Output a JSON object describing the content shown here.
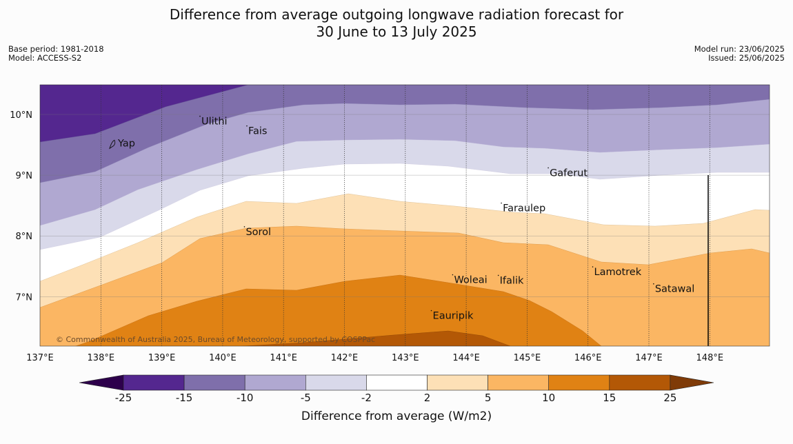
{
  "title": {
    "line1": "Difference from average outgoing longwave radiation forecast for",
    "line2": "30 June to 13 July 2025"
  },
  "info_left": {
    "base_period": "Base period: 1981-2018",
    "model": "Model: ACCESS-S2"
  },
  "info_right": {
    "model_run": "Model run: 23/06/2025",
    "issued": "Issued: 25/06/2025"
  },
  "map": {
    "lon_range": [
      137,
      149
    ],
    "lat_range": [
      6.2,
      10.5
    ],
    "lon_ticks": [
      "137°E",
      "138°E",
      "139°E",
      "140°E",
      "141°E",
      "142°E",
      "143°E",
      "144°E",
      "145°E",
      "146°E",
      "147°E",
      "148°E"
    ],
    "lat_ticks": [
      "10°N",
      "9°N",
      "8°N",
      "7°N"
    ],
    "places": [
      {
        "name": "Yap",
        "lon": 138.2,
        "lat": 9.52
      },
      {
        "name": "Ulithi",
        "lon": 139.65,
        "lat": 9.88
      },
      {
        "name": "Fais",
        "lon": 140.42,
        "lat": 9.72
      },
      {
        "name": "Gaferut",
        "lon": 145.37,
        "lat": 9.03
      },
      {
        "name": "Faraulep",
        "lon": 144.6,
        "lat": 8.45
      },
      {
        "name": "Sorol",
        "lon": 140.38,
        "lat": 8.06
      },
      {
        "name": "Woleai",
        "lon": 143.8,
        "lat": 7.27
      },
      {
        "name": "Ifalik",
        "lon": 144.55,
        "lat": 7.26
      },
      {
        "name": "Lamotrek",
        "lon": 146.1,
        "lat": 7.4
      },
      {
        "name": "Satawal",
        "lon": 147.1,
        "lat": 7.12
      },
      {
        "name": "Eauripik",
        "lon": 143.45,
        "lat": 6.68
      }
    ],
    "copyright": "© Commonwealth of Australia 2025, Bureau of Meteorology, supported by COSPPac"
  },
  "colorbar": {
    "boundaries": [
      "-25",
      "-15",
      "-10",
      "-5",
      "-2",
      "2",
      "5",
      "10",
      "15",
      "25"
    ],
    "colors": [
      "#54278f",
      "#7f6fab",
      "#b0a8d1",
      "#d9d9ea",
      "#ffffff",
      "#fde0b6",
      "#fbb663",
      "#e08214",
      "#b35806"
    ],
    "extend_low_color": "#2d004b",
    "extend_high_color": "#7f3b08",
    "label": "Difference from average (W/m2)"
  }
}
